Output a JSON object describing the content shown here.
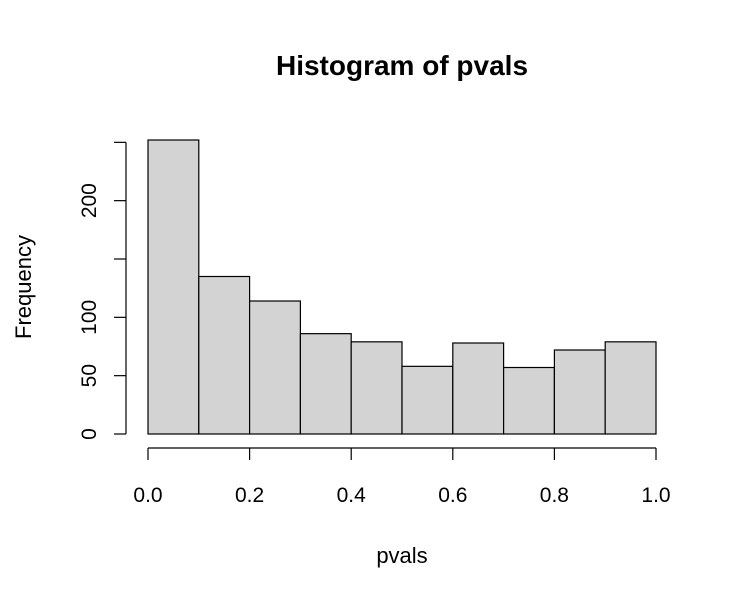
{
  "chart_data": {
    "type": "histogram",
    "title": "Histogram of pvals",
    "xlabel": "pvals",
    "ylabel": "Frequency",
    "bins": [
      {
        "x0": 0.0,
        "x1": 0.1,
        "count": 252
      },
      {
        "x0": 0.1,
        "x1": 0.2,
        "count": 135
      },
      {
        "x0": 0.2,
        "x1": 0.3,
        "count": 114
      },
      {
        "x0": 0.3,
        "x1": 0.4,
        "count": 86
      },
      {
        "x0": 0.4,
        "x1": 0.5,
        "count": 79
      },
      {
        "x0": 0.5,
        "x1": 0.6,
        "count": 58
      },
      {
        "x0": 0.6,
        "x1": 0.7,
        "count": 78
      },
      {
        "x0": 0.7,
        "x1": 0.8,
        "count": 57
      },
      {
        "x0": 0.8,
        "x1": 0.9,
        "count": 72
      },
      {
        "x0": 0.9,
        "x1": 1.0,
        "count": 79
      }
    ],
    "xlim": [
      0,
      1
    ],
    "ylim": [
      0,
      252
    ],
    "x_ticks": [
      0.0,
      0.2,
      0.4,
      0.6,
      0.8,
      1.0
    ],
    "x_tick_labels": [
      "0.0",
      "0.2",
      "0.4",
      "0.6",
      "0.8",
      "1.0"
    ],
    "y_ticks": [
      0,
      50,
      100,
      150,
      200,
      250
    ],
    "y_tick_labels": [
      "0",
      "50",
      "100",
      "",
      "200",
      ""
    ],
    "bar_fill": "#d3d3d3",
    "bar_stroke": "#000000",
    "grid": false
  }
}
